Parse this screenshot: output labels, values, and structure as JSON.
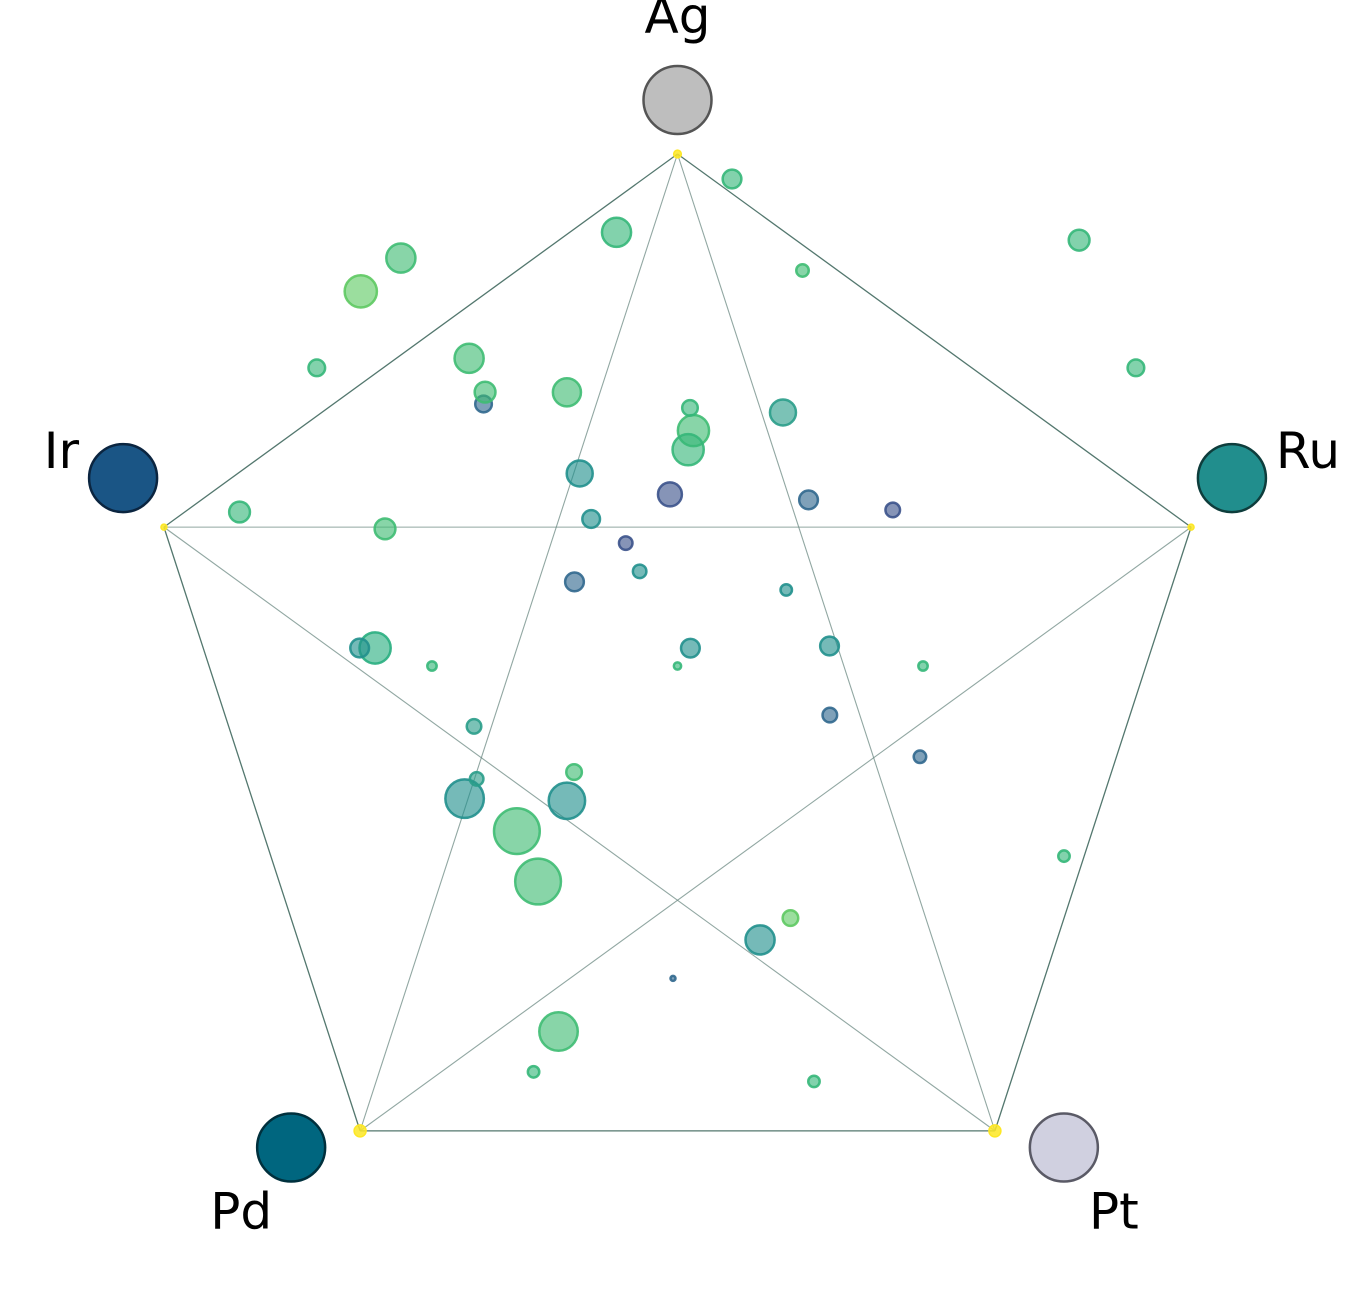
{
  "chart_data": {
    "type": "scatter",
    "subtype": "pentagonal-composition-plot",
    "grid": false,
    "legend": "none",
    "colormap": "viridis",
    "vertices": [
      {
        "label": "Ag",
        "color": "#bebebe",
        "edge_color": "#555555"
      },
      {
        "label": "Ru",
        "color": "#218e8d",
        "edge_color": "#0e3d3c"
      },
      {
        "label": "Pt",
        "color": "#d0d0e0",
        "edge_color": "#5a5a66"
      },
      {
        "label": "Pd",
        "color": "#00667f",
        "edge_color": "#00303d"
      },
      {
        "label": "Ir",
        "color": "#1a5585",
        "edge_color": "#0b2540"
      }
    ],
    "corner_markers": [
      {
        "vertex": "Ag",
        "size": 0.35,
        "color": "#fde725"
      },
      {
        "vertex": "Ru",
        "size": 0.15,
        "color": "#fde725"
      },
      {
        "vertex": "Pt",
        "size": 0.55,
        "color": "#fde725"
      },
      {
        "vertex": "Pd",
        "size": 0.55,
        "color": "#fde725"
      },
      {
        "vertex": "Ir",
        "size": 0.15,
        "color": "#fde725"
      }
    ],
    "points": [
      {
        "x": 0.4956,
        "y": 0.8207,
        "size": 0.06,
        "color": "#31688e"
      },
      {
        "x": 0.6104,
        "y": 0.7588,
        "size": 0.3,
        "color": "#5ec962"
      },
      {
        "x": 0.3593,
        "y": 0.9167,
        "size": 0.22,
        "color": "#35b779"
      },
      {
        "x": 0.6334,
        "y": 0.9265,
        "size": 0.22,
        "color": "#35b779"
      },
      {
        "x": 0.8778,
        "y": 0.6952,
        "size": 0.22,
        "color": "#35b779"
      },
      {
        "x": 0.26,
        "y": 0.5,
        "size": 0.18,
        "color": "#35b779"
      },
      {
        "x": 0.5,
        "y": 0.5,
        "size": 0.14,
        "color": "#35b779"
      },
      {
        "x": 0.74,
        "y": 0.5,
        "size": 0.18,
        "color": "#35b779"
      },
      {
        "x": 0.1474,
        "y": 0.1939,
        "size": 0.32,
        "color": "#35b779"
      },
      {
        "x": 0.9481,
        "y": 0.1939,
        "size": 0.32,
        "color": "#35b779"
      },
      {
        "x": 0.0719,
        "y": 0.3419,
        "size": 0.4,
        "color": "#35b779"
      },
      {
        "x": 0.8926,
        "y": 0.0628,
        "size": 0.4,
        "color": "#35b779"
      },
      {
        "x": 0.5533,
        "y": 0.0,
        "size": 0.36,
        "color": "#35b779"
      },
      {
        "x": 0.3837,
        "y": 0.8753,
        "size": 0.74,
        "color": "#3fbc73"
      },
      {
        "x": 0.2044,
        "y": 0.4815,
        "size": 0.6,
        "color": "#28ae80"
      },
      {
        "x": 0.3637,
        "y": 0.7213,
        "size": 0.88,
        "color": "#3fbc73"
      },
      {
        "x": 0.343,
        "y": 0.6695,
        "size": 0.88,
        "color": "#3fbc73"
      },
      {
        "x": 0.2919,
        "y": 0.6362,
        "size": 0.74,
        "color": "#21908d"
      },
      {
        "x": 0.3919,
        "y": 0.6384,
        "size": 0.7,
        "color": "#21908d"
      },
      {
        "x": 0.5807,
        "y": 0.7812,
        "size": 0.56,
        "color": "#21908d"
      },
      {
        "x": 0.6486,
        "y": 0.4795,
        "size": 0.36,
        "color": "#21908d"
      },
      {
        "x": 0.5126,
        "y": 0.4817,
        "size": 0.36,
        "color": "#21908d"
      },
      {
        "x": 0.3993,
        "y": 0.4136,
        "size": 0.36,
        "color": "#31688e"
      },
      {
        "x": 0.4926,
        "y": 0.3238,
        "size": 0.46,
        "color": "#3b528b"
      },
      {
        "x": 0.6281,
        "y": 0.3294,
        "size": 0.36,
        "color": "#31688e"
      },
      {
        "x": 0.2963,
        "y": 0.1841,
        "size": 0.56,
        "color": "#3fbc73"
      },
      {
        "x": 0.3919,
        "y": 0.219,
        "size": 0.54,
        "color": "#3fbc73"
      },
      {
        "x": 0.6031,
        "y": 0.2397,
        "size": 0.5,
        "color": "#2a9d89"
      },
      {
        "x": 0.6222,
        "y": 0.0939,
        "size": 0.24,
        "color": "#3fbc73"
      },
      {
        "x": 0.4404,
        "y": 0.0547,
        "size": 0.56,
        "color": "#35b779"
      },
      {
        "x": 0.5156,
        "y": 0.2583,
        "size": 0.6,
        "color": "#3fbc73"
      },
      {
        "x": 0.5104,
        "y": 0.2779,
        "size": 0.6,
        "color": "#35b779"
      },
      {
        "x": 0.3104,
        "y": 0.231,
        "size": 0.32,
        "color": "#31688e"
      },
      {
        "x": 0.1904,
        "y": 0.1154,
        "size": 0.62,
        "color": "#5ec962"
      },
      {
        "x": 0.2296,
        "y": 0.0812,
        "size": 0.56,
        "color": "#3fbc73"
      },
      {
        "x": 0.3011,
        "y": 0.562,
        "size": 0.28,
        "color": "#2a9d89"
      },
      {
        "x": 0.737,
        "y": 0.5932,
        "size": 0.24,
        "color": "#31688e"
      },
      {
        "x": 0.6489,
        "y": 0.5504,
        "size": 0.28,
        "color": "#31688e"
      },
      {
        "x": 0.7104,
        "y": 0.3398,
        "size": 0.28,
        "color": "#3b528b"
      },
      {
        "x": 0.6063,
        "y": 0.4219,
        "size": 0.22,
        "color": "#21908d"
      },
      {
        "x": 0.4156,
        "y": 0.3491,
        "size": 0.34,
        "color": "#21908d"
      },
      {
        "x": 0.4044,
        "y": 0.3023,
        "size": 0.5,
        "color": "#21908d"
      },
      {
        "x": 0.1893,
        "y": 0.4815,
        "size": 0.36,
        "color": "#21908d"
      },
      {
        "x": 0.3037,
        "y": 0.6159,
        "size": 0.26,
        "color": "#2a9d89"
      },
      {
        "x": 0.463,
        "y": 0.4028,
        "size": 0.26,
        "color": "#21908d"
      },
      {
        "x": 0.4494,
        "y": 0.3738,
        "size": 0.26,
        "color": "#3b528b"
      },
      {
        "x": 0.2141,
        "y": 0.3592,
        "size": 0.4,
        "color": "#3fbc73"
      },
      {
        "x": 0.3989,
        "y": 0.6089,
        "size": 0.3,
        "color": "#3fbc73"
      },
      {
        "x": 0.5122,
        "y": 0.235,
        "size": 0.3,
        "color": "#35b779"
      },
      {
        "x": 0.3119,
        "y": 0.2188,
        "size": 0.4,
        "color": "#3fbc73"
      }
    ]
  }
}
